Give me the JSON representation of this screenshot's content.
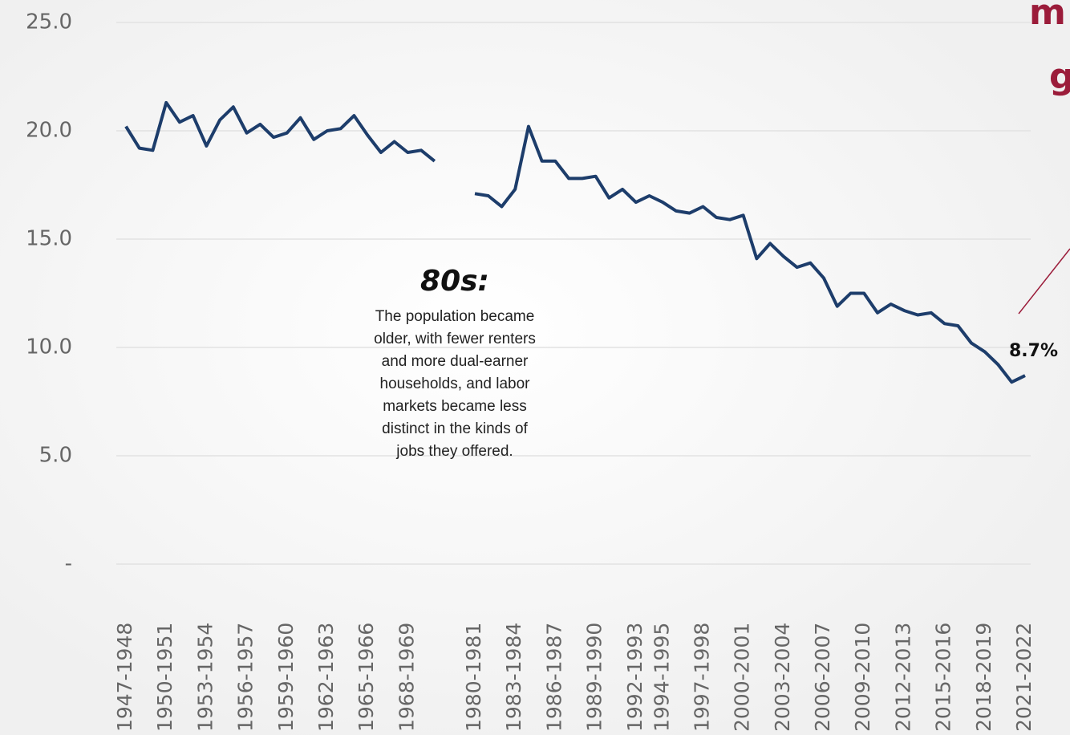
{
  "chart_data": {
    "type": "line",
    "categories": [
      "1947-1948",
      null,
      null,
      "1950-1951",
      null,
      null,
      "1953-1954",
      null,
      null,
      "1956-1957",
      null,
      null,
      "1959-1960",
      null,
      null,
      "1962-1963",
      null,
      null,
      "1965-1966",
      null,
      null,
      "1968-1969",
      null,
      null,
      null,
      null,
      "1980-1981",
      null,
      null,
      "1983-1984",
      null,
      null,
      "1986-1987",
      null,
      null,
      "1989-1990",
      null,
      null,
      "1992-1993",
      null,
      "1994-1995",
      null,
      null,
      "1997-1998",
      null,
      null,
      "2000-2001",
      null,
      null,
      "2003-2004",
      null,
      null,
      "2006-2007",
      null,
      null,
      "2009-2010",
      null,
      null,
      "2012-2013",
      null,
      null,
      "2015-2016",
      null,
      null,
      "2018-2019",
      null,
      null,
      "2021-2022"
    ],
    "series": [
      {
        "color": "#1d3d6b",
        "values": [
          20.2,
          19.2,
          19.1,
          21.3,
          20.4,
          20.7,
          19.3,
          20.5,
          21.1,
          19.9,
          20.3,
          19.7,
          19.9,
          20.6,
          19.6,
          20.0,
          20.1,
          20.7,
          19.8,
          19.0,
          19.5,
          19.0,
          19.1,
          18.6,
          null,
          null,
          17.1,
          17.0,
          16.5,
          17.3,
          20.2,
          18.6,
          18.6,
          17.8,
          17.8,
          17.9,
          16.9,
          17.3,
          16.7,
          17.0,
          16.7,
          16.3,
          16.2,
          16.5,
          16.0,
          15.9,
          16.1,
          14.1,
          14.8,
          14.2,
          13.7,
          13.9,
          13.2,
          11.9,
          12.5,
          12.5,
          11.6,
          12.0,
          11.7,
          11.5,
          11.6,
          11.1,
          11.0,
          10.2,
          9.8,
          9.2,
          8.4,
          8.7
        ],
        "value_labels": [
          null,
          null,
          null,
          null,
          null,
          null,
          null,
          null,
          null,
          null,
          null,
          null,
          null,
          null,
          null,
          null,
          null,
          null,
          null,
          null,
          null,
          null,
          null,
          null,
          null,
          null,
          null,
          null,
          null,
          null,
          null,
          null,
          null,
          null,
          null,
          null,
          null,
          null,
          null,
          null,
          null,
          null,
          null,
          null,
          null,
          null,
          null,
          null,
          null,
          null,
          null,
          null,
          null,
          null,
          null,
          null,
          null,
          null,
          null,
          null,
          null,
          null,
          null,
          null,
          null,
          null,
          null,
          "8.7%"
        ]
      }
    ],
    "ylim": [
      0,
      25
    ],
    "yticks": [
      {
        "value": 0,
        "label": "-"
      },
      {
        "value": 5,
        "label": "5.0"
      },
      {
        "value": 10,
        "label": "10.0"
      },
      {
        "value": 15,
        "label": "15.0"
      },
      {
        "value": 20,
        "label": "20.0"
      },
      {
        "value": 25,
        "label": "25.0"
      }
    ],
    "grid": true,
    "annotations": {
      "heading": "80s:",
      "lines": [
        "The population became",
        "older, with fewer renters",
        "and more dual-earner",
        "households, and labor",
        "markets became less",
        "distinct in the kinds of",
        "jobs they offered."
      ],
      "cropped": [
        "m",
        "g"
      ]
    }
  }
}
